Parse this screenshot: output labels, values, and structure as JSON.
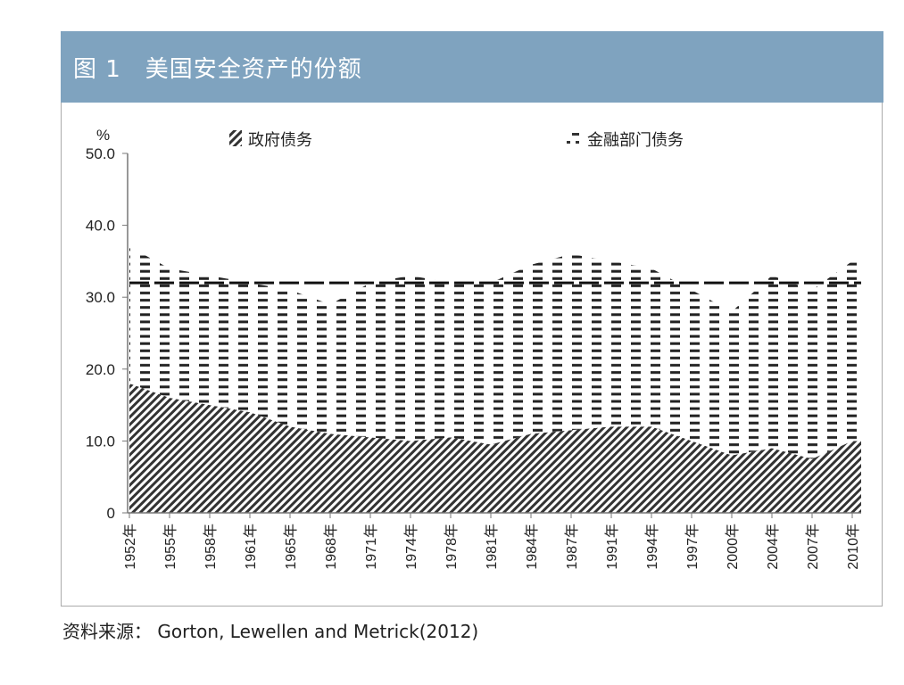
{
  "title": "图 1　美国安全资产的份额",
  "source": "资料来源： Gorton, Lewellen and Metrick(2012)",
  "chart_data": {
    "type": "area",
    "stacked": true,
    "title": "美国安全资产的份额",
    "ylabel": "%",
    "xlabel": "",
    "ylim": [
      0,
      50
    ],
    "yticks": [
      "0",
      "10.0",
      "20.0",
      "30.0",
      "40.0",
      "50.0"
    ],
    "ytick_values": [
      0,
      10,
      20,
      30,
      40,
      50
    ],
    "categories": [
      "1952年",
      "1955年",
      "1958年",
      "1961年",
      "1965年",
      "1968年",
      "1971年",
      "1974年",
      "1978年",
      "1981年",
      "1984年",
      "1987年",
      "1991年",
      "1994年",
      "1997年",
      "2000年",
      "2004年",
      "2007年",
      "2010年"
    ],
    "legend_position": "top",
    "series": [
      {
        "name": "政府债务",
        "pattern": "diagonal-hatch",
        "values": [
          18,
          16,
          15,
          14,
          12,
          11,
          10.5,
          10,
          10.5,
          9.5,
          11,
          11.5,
          12,
          12,
          10,
          8,
          9,
          7.5,
          10
        ]
      },
      {
        "name": "金融部门债务",
        "pattern": "dashes",
        "values": [
          19,
          18,
          18,
          18,
          19,
          18,
          21.5,
          23,
          21.5,
          22.5,
          23.5,
          24.5,
          23,
          22,
          21,
          20,
          24,
          23.5,
          25
        ]
      }
    ],
    "reference_line": {
      "style": "long-dash",
      "value": 32
    }
  }
}
